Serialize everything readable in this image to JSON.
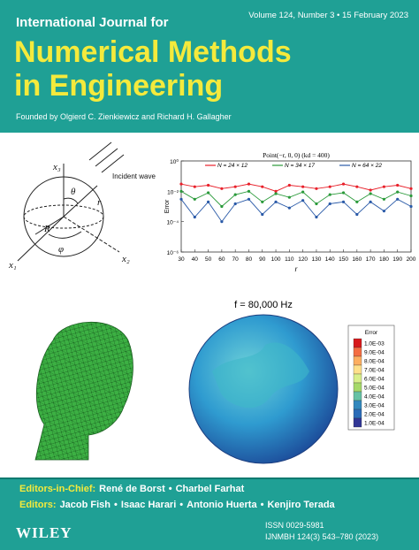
{
  "header": {
    "journal_prefix": "International Journal for",
    "issue": "Volume 124, Number 3  •  15 February 2023",
    "title_line1": "Numerical Methods",
    "title_line2": "in Engineering",
    "founded": "Founded by Olgierd C. Zienkiewicz and Richard H. Gallagher"
  },
  "figures": {
    "incident_wave": {
      "labels": {
        "x3": "x₃",
        "x1": "x₁",
        "x2": "x₂",
        "theta": "θ",
        "r": "r",
        "R": "R",
        "phi": "φ",
        "wave": "Incident wave"
      }
    },
    "error_plot": {
      "type": "line",
      "title": "Point(−r, 0, 0) (kd = 400)",
      "xlabel": "r",
      "ylabel": "Error",
      "x": [
        30,
        40,
        50,
        60,
        70,
        80,
        90,
        100,
        110,
        120,
        130,
        140,
        150,
        160,
        170,
        180,
        190,
        200
      ],
      "series": [
        {
          "name": "N = 24 × 12",
          "color": "#e8202a",
          "values": [
            0.03,
            0.02,
            0.025,
            0.015,
            0.02,
            0.03,
            0.02,
            0.01,
            0.025,
            0.02,
            0.015,
            0.02,
            0.03,
            0.02,
            0.012,
            0.02,
            0.025,
            0.015
          ]
        },
        {
          "name": "N = 34 × 17",
          "color": "#2a9a3a",
          "values": [
            0.01,
            0.003,
            0.008,
            0.001,
            0.006,
            0.01,
            0.002,
            0.007,
            0.004,
            0.009,
            0.0015,
            0.006,
            0.008,
            0.002,
            0.007,
            0.003,
            0.009,
            0.005
          ]
        },
        {
          "name": "N = 64 × 22",
          "color": "#2a5aa8",
          "values": [
            0.003,
            0.0002,
            0.002,
            0.0001,
            0.0015,
            0.003,
            0.0003,
            0.002,
            0.0008,
            0.0025,
            0.0002,
            0.0015,
            0.002,
            0.0003,
            0.002,
            0.0005,
            0.003,
            0.001
          ]
        }
      ],
      "xlim": [
        30,
        200
      ],
      "ylim": [
        1e-06,
        1
      ],
      "log_y": true,
      "xticks": [
        30,
        40,
        50,
        60,
        70,
        80,
        90,
        100,
        110,
        120,
        130,
        140,
        150,
        160,
        170,
        180,
        190,
        200
      ],
      "yticks": [
        {
          "value": 1,
          "label": "10⁰"
        },
        {
          "value": 0.01,
          "label": "10⁻²"
        },
        {
          "value": 0.0001,
          "label": "10⁻⁴"
        },
        {
          "value": 1e-06,
          "label": "10⁻⁶"
        }
      ]
    },
    "frequency_label": "f = 80,000 Hz",
    "colorbar": {
      "title": "Error",
      "labels": [
        "1.0E-03",
        "9.0E-04",
        "8.0E-04",
        "7.0E-04",
        "6.0E-04",
        "5.0E-04",
        "4.0E-04",
        "3.0E-04",
        "2.0E-04",
        "1.0E-04"
      ],
      "colors": [
        "#d7191c",
        "#f46d43",
        "#fdae61",
        "#fee08b",
        "#d9ef8b",
        "#a6d96a",
        "#66c2a5",
        "#3288bd",
        "#2b6cb8",
        "#313695"
      ]
    }
  },
  "footer": {
    "editors_in_chief_label": "Editors-in-Chief:",
    "editors_in_chief": [
      "René de Borst",
      "Charbel Farhat"
    ],
    "editors_label": "Editors:",
    "editors": [
      "Jacob Fish",
      "Isaac Harari",
      "Antonio Huerta",
      "Kenjiro Terada"
    ],
    "separator": "•",
    "publisher": "WILEY",
    "issn": "ISSN 0029-5981",
    "ijnmbh": "IJNMBH 124(3) 543–780 (2023)"
  }
}
